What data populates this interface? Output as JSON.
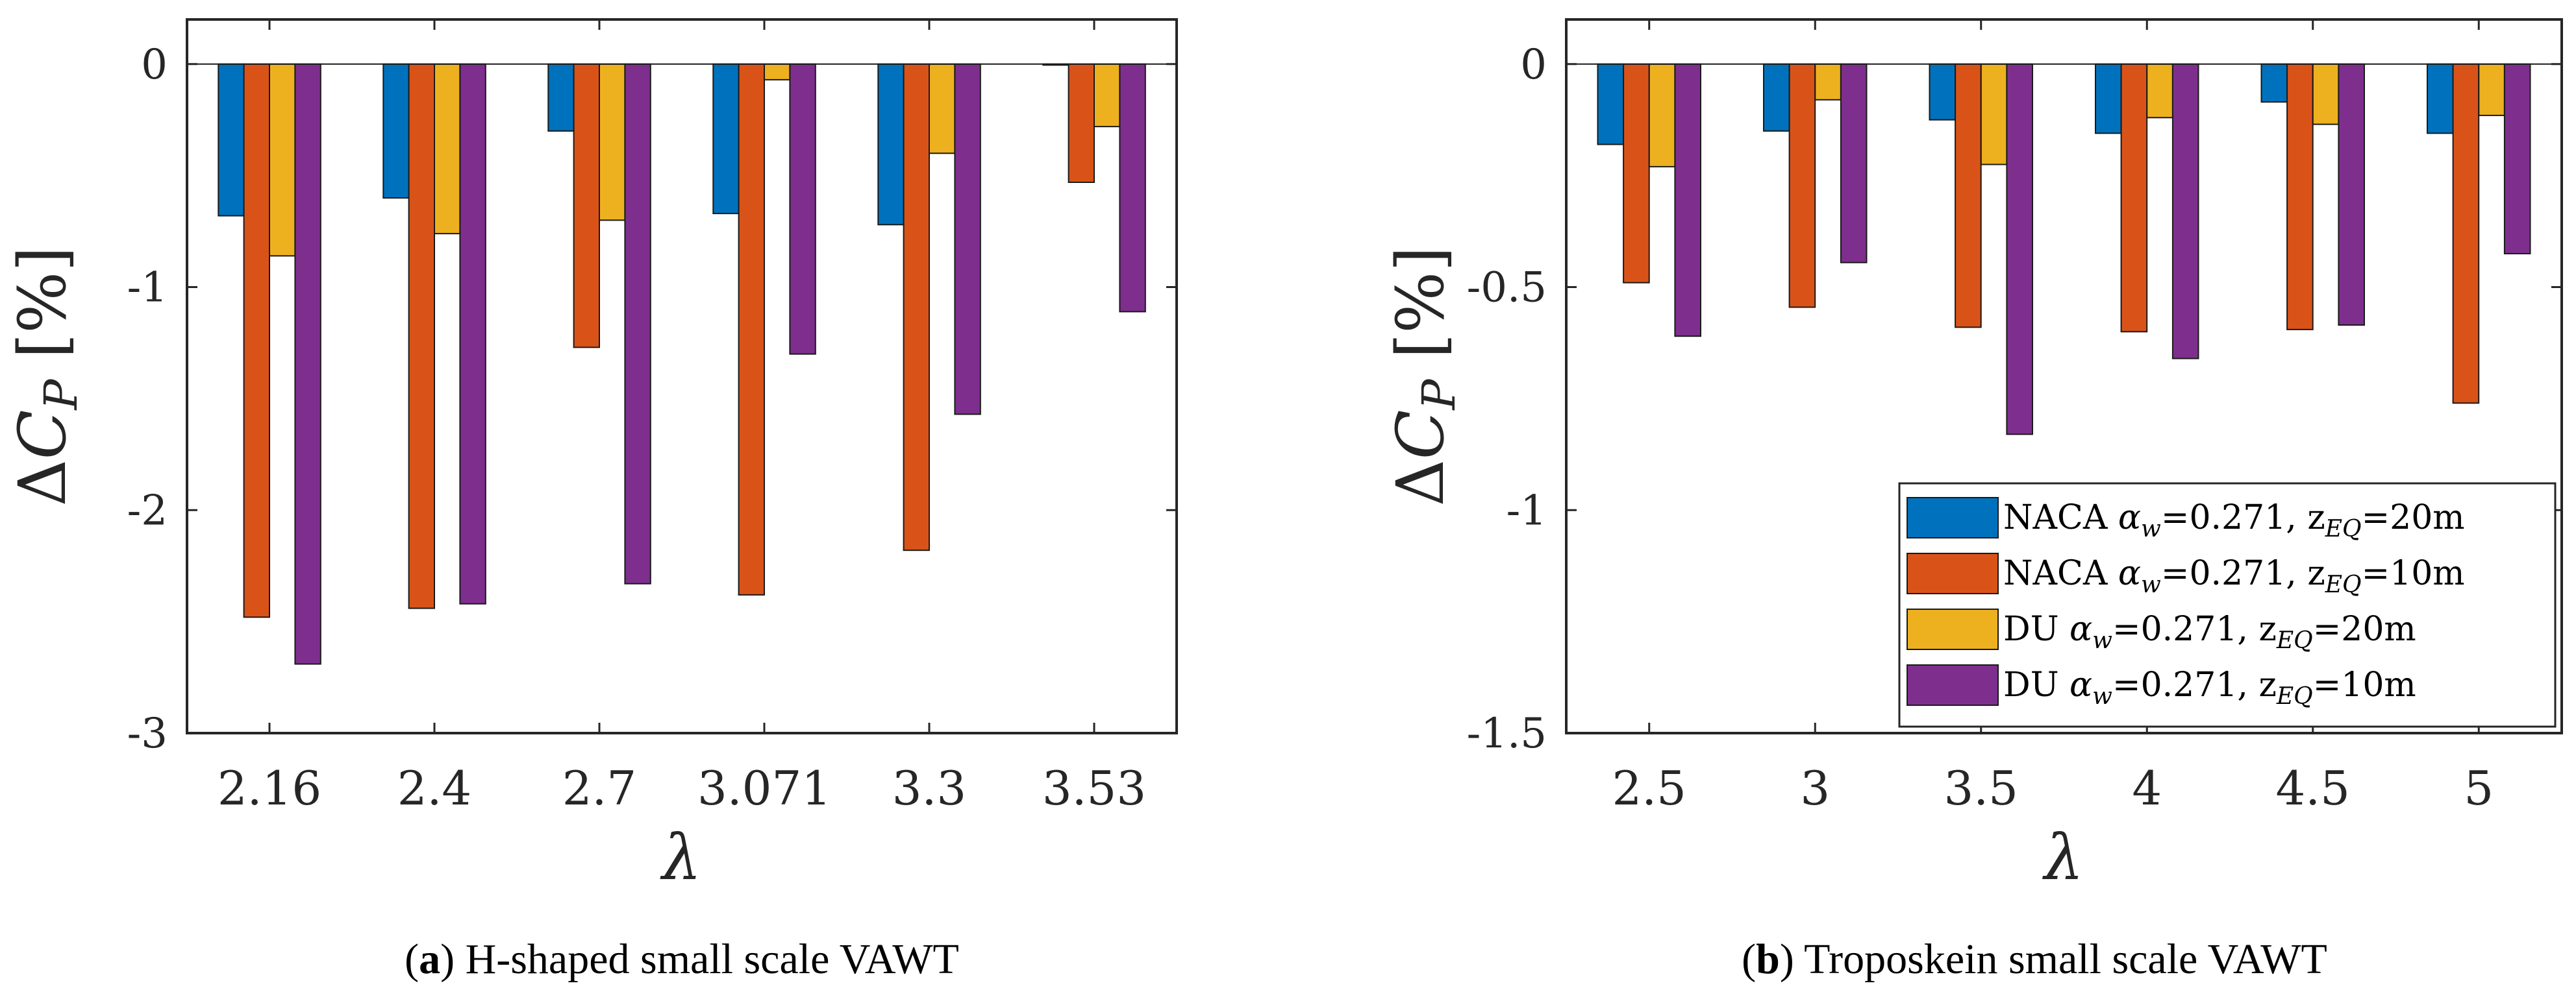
{
  "figure": {
    "panels": [
      {
        "caption_letter": "a",
        "caption_text": "H-shaped small scale VAWT"
      },
      {
        "caption_letter": "b",
        "caption_text": "Troposkein small scale VAWT"
      }
    ]
  },
  "series_colors": [
    "#0072BD",
    "#D95319",
    "#EDB120",
    "#7E2F8E"
  ],
  "chart_data": [
    {
      "type": "bar",
      "panel": "a",
      "ylabel": "ΔC_P [%]",
      "xlabel": "λ",
      "categories": [
        "2.16",
        "2.4",
        "2.7",
        "3.071",
        "3.3",
        "3.53"
      ],
      "ylim": [
        -3,
        0.2
      ],
      "yticks": [
        0,
        -1,
        -2,
        -3
      ],
      "ytick_labels": [
        "0",
        "-1",
        "-2",
        "-3"
      ],
      "series": [
        {
          "name": "NACA αw=0.271, zEQ=20m",
          "values": [
            -0.68,
            -0.6,
            -0.3,
            -0.67,
            -0.72,
            0.0
          ]
        },
        {
          "name": "NACA αw=0.271, zEQ=10m",
          "values": [
            -2.48,
            -2.44,
            -1.27,
            -2.38,
            -2.18,
            -0.53
          ]
        },
        {
          "name": "DU αw=0.271, zEQ=20m",
          "values": [
            -0.86,
            -0.76,
            -0.7,
            -0.07,
            -0.4,
            -0.28
          ]
        },
        {
          "name": "DU αw=0.271, zEQ=10m",
          "values": [
            -2.69,
            -2.42,
            -2.33,
            -1.3,
            -1.57,
            -1.11
          ]
        }
      ],
      "legend": null
    },
    {
      "type": "bar",
      "panel": "b",
      "ylabel": "ΔC_P [%]",
      "xlabel": "λ",
      "categories": [
        "2.5",
        "3",
        "3.5",
        "4",
        "4.5",
        "5"
      ],
      "ylim": [
        -1.5,
        0.1
      ],
      "yticks": [
        0,
        -0.5,
        -1,
        -1.5
      ],
      "ytick_labels": [
        "0",
        "-0.5",
        "-1",
        "-1.5"
      ],
      "series": [
        {
          "name": "NACA αw=0.271, zEQ=20m",
          "values": [
            -0.18,
            -0.15,
            -0.125,
            -0.155,
            -0.085,
            -0.155
          ]
        },
        {
          "name": "NACA αw=0.271, zEQ=10m",
          "values": [
            -0.49,
            -0.545,
            -0.59,
            -0.6,
            -0.595,
            -0.76
          ]
        },
        {
          "name": "DU αw=0.271, zEQ=20m",
          "values": [
            -0.23,
            -0.08,
            -0.225,
            -0.12,
            -0.135,
            -0.115
          ]
        },
        {
          "name": "DU αw=0.271, zEQ=10m",
          "values": [
            -0.61,
            -0.445,
            -0.83,
            -0.66,
            -0.585,
            -0.425
          ]
        }
      ],
      "legend": {
        "position": "bottom-right",
        "entries": [
          {
            "prefix": "NACA ",
            "alpha": "α",
            "alpha_sub": "w",
            "mid": "=0.271, z",
            "z_sub": "EQ",
            "suffix": "=20m"
          },
          {
            "prefix": "NACA ",
            "alpha": "α",
            "alpha_sub": "w",
            "mid": "=0.271, z",
            "z_sub": "EQ",
            "suffix": "=10m"
          },
          {
            "prefix": "DU ",
            "alpha": "α",
            "alpha_sub": "w",
            "mid": "=0.271, z",
            "z_sub": "EQ",
            "suffix": "=20m"
          },
          {
            "prefix": "DU ",
            "alpha": "α",
            "alpha_sub": "w",
            "mid": "=0.271, z",
            "z_sub": "EQ",
            "suffix": "=10m"
          }
        ]
      }
    }
  ]
}
